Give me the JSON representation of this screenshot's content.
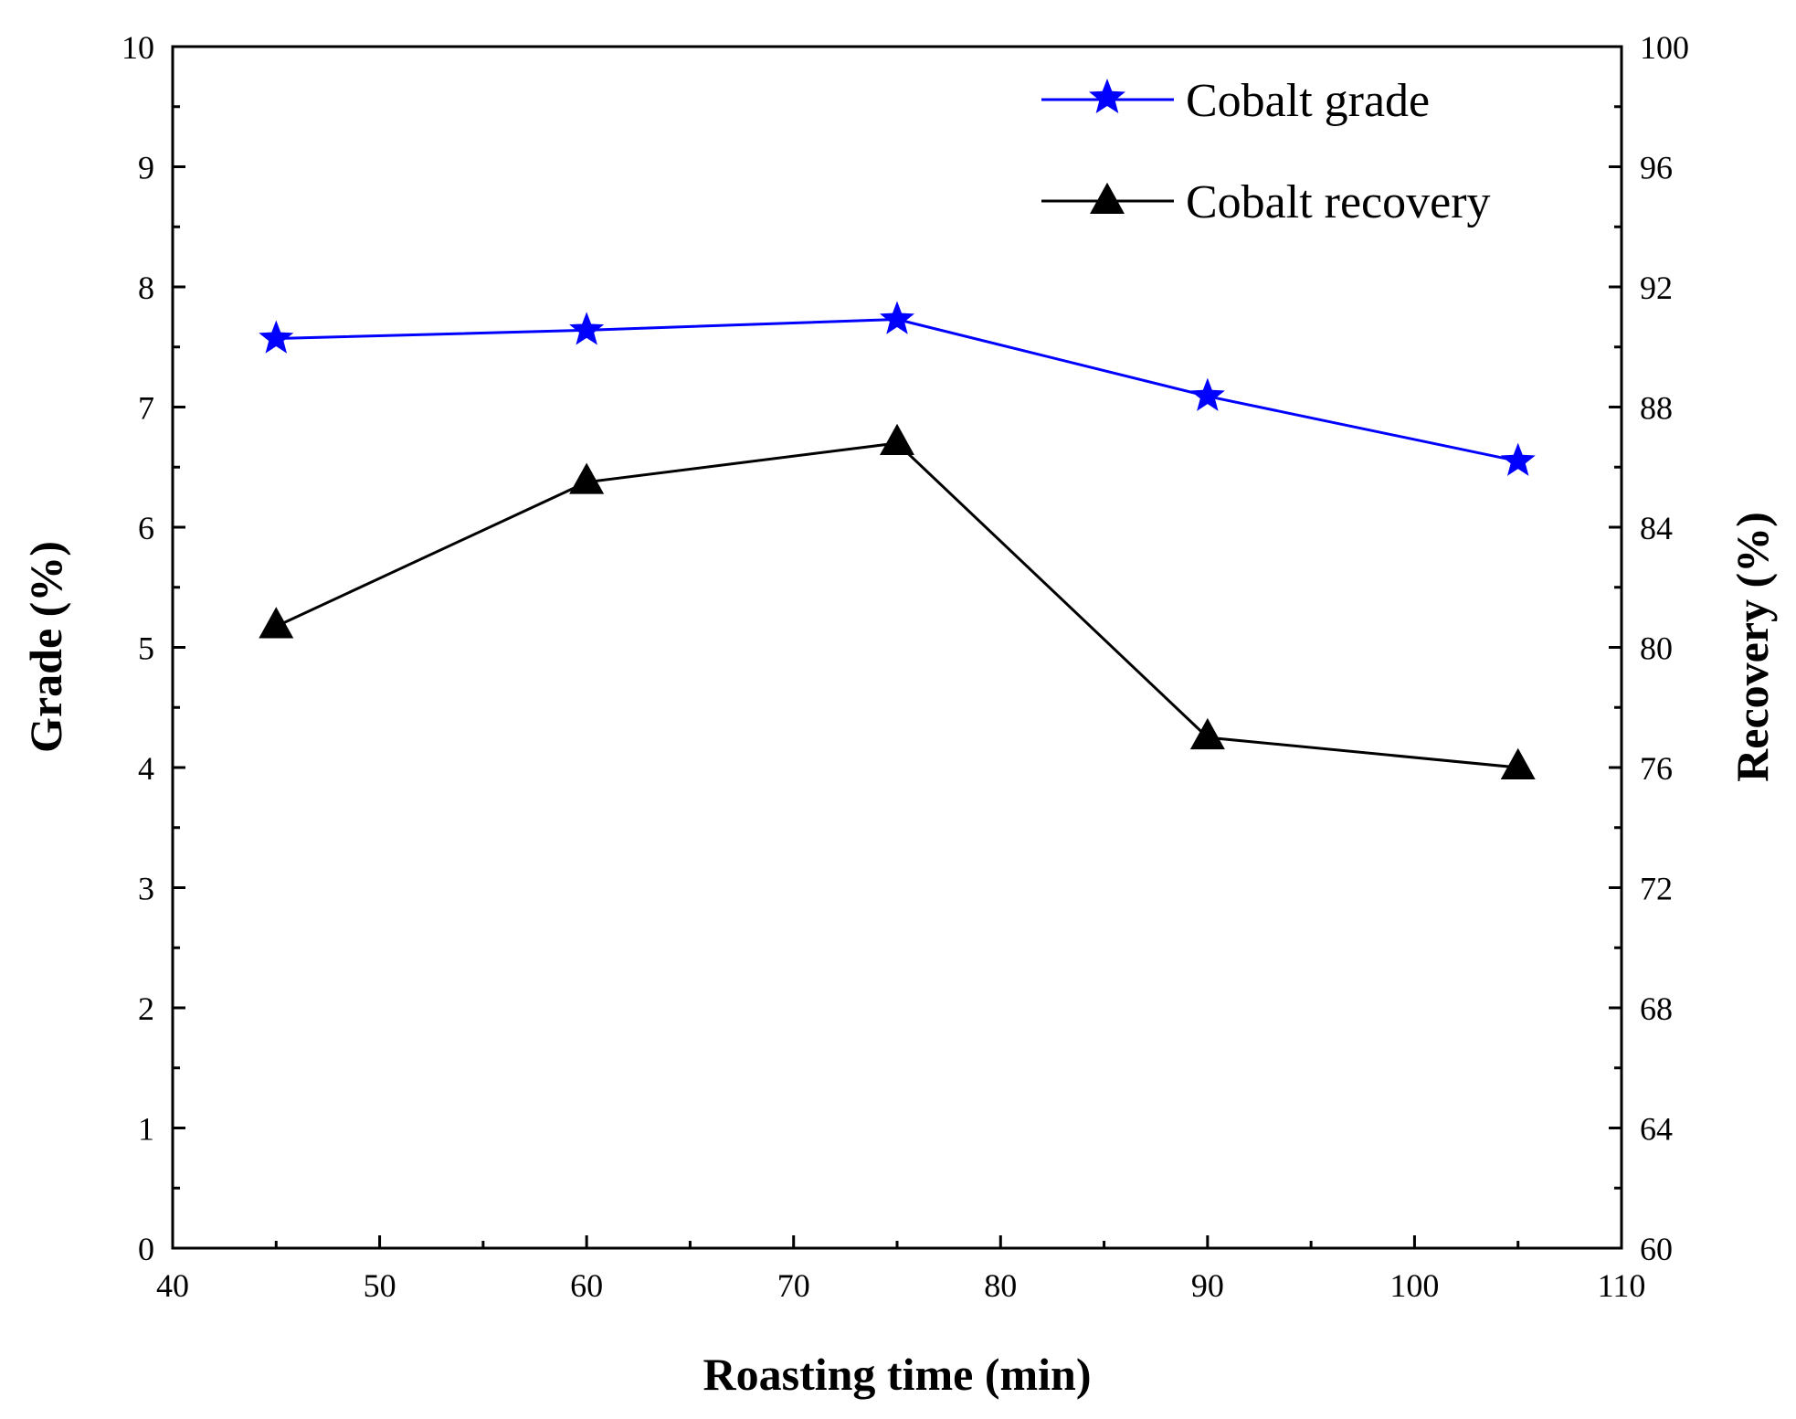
{
  "chart_data": {
    "type": "line",
    "title": "",
    "xlabel": "Roasting time (min)",
    "ylabel_left": "Grade (%)",
    "ylabel_right": "Recovery (%)",
    "xlim": [
      40,
      110
    ],
    "ylim_left": [
      0,
      10
    ],
    "ylim_right": [
      60,
      100
    ],
    "x_ticks": [
      40,
      50,
      60,
      70,
      80,
      90,
      100,
      110
    ],
    "y_left_ticks": [
      0,
      1,
      2,
      3,
      4,
      5,
      6,
      7,
      8,
      9,
      10
    ],
    "y_right_ticks": [
      60,
      64,
      68,
      72,
      76,
      80,
      84,
      88,
      92,
      96,
      100
    ],
    "grid": false,
    "legend_position": "top-right",
    "x": [
      45,
      60,
      75,
      90,
      105
    ],
    "series": [
      {
        "name": "Cobalt grade",
        "axis": "left",
        "marker": "star",
        "color": "#0000ff",
        "values": [
          7.57,
          7.64,
          7.73,
          7.09,
          6.55
        ]
      },
      {
        "name": "Cobalt recovery",
        "axis": "right",
        "marker": "triangle",
        "color": "#000000",
        "values": [
          80.7,
          85.5,
          86.8,
          77.0,
          76.0
        ]
      }
    ]
  }
}
